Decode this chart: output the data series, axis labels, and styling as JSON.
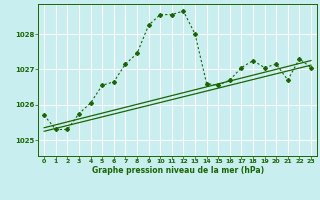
{
  "title": "Graphe pression niveau de la mer (hPa)",
  "bg_color": "#c8eef0",
  "grid_color": "#ffffff",
  "line_color": "#1a6600",
  "xlim": [
    -0.5,
    23.5
  ],
  "ylim": [
    1024.55,
    1028.85
  ],
  "yticks": [
    1025,
    1026,
    1027,
    1028
  ],
  "xticks": [
    0,
    1,
    2,
    3,
    4,
    5,
    6,
    7,
    8,
    9,
    10,
    11,
    12,
    13,
    14,
    15,
    16,
    17,
    18,
    19,
    20,
    21,
    22,
    23
  ],
  "series1_x": [
    0,
    1,
    2,
    3,
    4,
    5,
    6,
    7,
    8,
    9,
    10,
    11,
    12,
    13,
    14,
    15,
    16,
    17,
    18,
    19,
    20,
    21,
    22,
    23
  ],
  "series1_y": [
    1025.7,
    1025.3,
    1025.3,
    1025.75,
    1026.05,
    1026.55,
    1026.65,
    1027.15,
    1027.45,
    1028.25,
    1028.55,
    1028.55,
    1028.65,
    1028.0,
    1026.6,
    1026.55,
    1026.7,
    1027.05,
    1027.25,
    1027.05,
    1027.15,
    1026.7,
    1027.3,
    1027.05
  ],
  "series2_x": [
    0,
    23
  ],
  "series2_y": [
    1025.35,
    1027.25
  ],
  "series3_x": [
    0,
    23
  ],
  "series3_y": [
    1025.25,
    1027.12
  ]
}
